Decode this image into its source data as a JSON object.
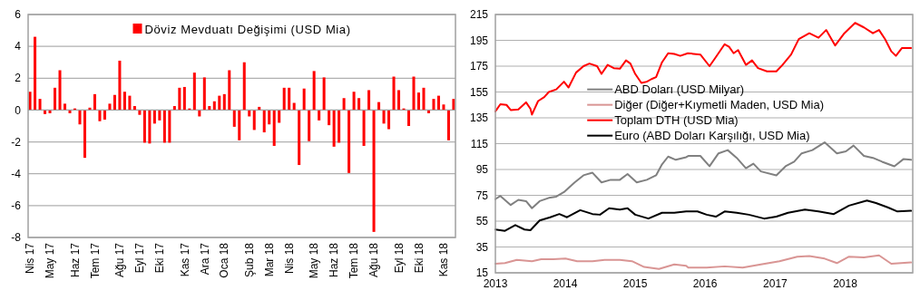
{
  "chart_data": [
    {
      "type": "bar",
      "categories": [
        "Nis 17",
        null,
        null,
        null,
        "May 17",
        null,
        null,
        null,
        null,
        "Haz 17",
        null,
        null,
        null,
        "Tem 17",
        null,
        null,
        null,
        null,
        "Ağu 17",
        null,
        null,
        null,
        "Eyl 17",
        null,
        null,
        null,
        "Eki 17",
        null,
        null,
        null,
        null,
        "Kas 17",
        null,
        null,
        null,
        "Ara 17",
        null,
        null,
        null,
        "Oca 18",
        null,
        null,
        null,
        null,
        "Şub 18",
        null,
        null,
        null,
        "Mar 18",
        null,
        null,
        null,
        "Nis 18",
        null,
        null,
        null,
        null,
        "May 18",
        null,
        null,
        null,
        "Haz 18",
        null,
        null,
        null,
        "Tem 18",
        null,
        null,
        null,
        "Ağu 18",
        null,
        null,
        null,
        null,
        "Eyl 18",
        null,
        null,
        null,
        "Eki 18",
        null,
        null,
        null,
        null,
        "Kas 18",
        null,
        null
      ],
      "series": [
        {
          "name": "Döviz Mevduatı Değişimi (USD Mia)",
          "color": "#ff0000",
          "values": [
            1.15,
            4.6,
            0.7,
            -0.25,
            -0.2,
            1.4,
            2.5,
            0.4,
            -0.2,
            0.1,
            -0.9,
            -3.0,
            0.15,
            1.0,
            -0.7,
            -0.6,
            0.4,
            0.95,
            3.1,
            1.15,
            0.9,
            0.25,
            -0.3,
            -2.05,
            -2.1,
            -0.85,
            -0.65,
            -2.05,
            -2.05,
            0.25,
            1.4,
            1.45,
            0.1,
            2.35,
            -0.4,
            2.05,
            0.25,
            0.55,
            0.9,
            1.0,
            2.5,
            -1.05,
            -1.9,
            3.0,
            -0.4,
            -1.25,
            0.2,
            -1.4,
            -0.9,
            -2.25,
            -0.8,
            1.4,
            1.4,
            0.45,
            -3.45,
            1.35,
            -1.95,
            2.45,
            -0.65,
            2.05,
            -0.95,
            -2.3,
            -2.05,
            0.75,
            -3.95,
            1.15,
            0.75,
            -2.25,
            1.25,
            -7.65,
            0.5,
            -0.85,
            -1.2,
            2.1,
            1.25,
            0.1,
            -1.0,
            2.1,
            1.1,
            1.4,
            -0.2,
            0.7,
            0.9,
            0.35,
            -1.9,
            0.7
          ]
        }
      ],
      "ylim": [
        -8,
        6
      ],
      "yticks": [
        -8,
        -6,
        -4,
        -2,
        0,
        2,
        4,
        6
      ],
      "grid": "y",
      "legend": "top"
    },
    {
      "type": "line",
      "xlim": [
        "2013-01-01",
        "2018-12-20"
      ],
      "xticks": [
        "2013",
        "2014",
        "2015",
        "2016",
        "2017",
        "2018"
      ],
      "ylim": [
        15,
        215
      ],
      "yticks": [
        15,
        35,
        55,
        75,
        95,
        115,
        135,
        155,
        175,
        195,
        215
      ],
      "grid": "y",
      "legend": "left",
      "series": [
        {
          "name": "ABD Doları (USD Milyar)",
          "color": "#808080",
          "x": [
            "2013-01-01",
            "2013-01-27",
            "2013-03-22",
            "2013-05-01",
            "2013-06-10",
            "2013-07-11",
            "2013-08-20",
            "2013-10-07",
            "2013-11-15",
            "2013-12-25",
            "2014-02-19",
            "2014-04-06",
            "2014-05-23",
            "2014-07-09",
            "2014-08-26",
            "2014-10-13",
            "2014-11-22",
            "2015-01-09",
            "2015-03-03",
            "2015-04-20",
            "2015-05-21",
            "2015-06-22",
            "2015-08-01",
            "2015-09-24",
            "2015-10-05",
            "2015-12-07",
            "2016-01-24",
            "2016-03-11",
            "2016-04-28",
            "2016-06-14",
            "2016-08-01",
            "2016-09-09",
            "2016-10-18",
            "2017-01-07",
            "2017-02-24",
            "2017-04-10",
            "2017-05-19",
            "2017-07-14",
            "2017-09-16",
            "2017-11-19",
            "2018-01-05",
            "2018-02-14",
            "2018-04-09",
            "2018-05-26",
            "2018-07-13",
            "2018-09-15",
            "2018-11-01",
            "2018-12-11"
          ],
          "values": [
            72,
            74.5,
            67.5,
            71.5,
            70.5,
            65,
            70.5,
            73,
            74,
            77.5,
            85,
            90.5,
            92.5,
            85,
            87,
            87,
            91.5,
            85,
            87,
            90.5,
            99,
            105,
            102.5,
            104.5,
            105.5,
            105.5,
            97.5,
            107.5,
            110,
            104,
            96,
            99.5,
            93.5,
            90.5,
            97.5,
            101,
            107.5,
            110,
            116,
            107.5,
            109,
            113.5,
            105.5,
            104,
            101,
            97.5,
            103,
            102.5
          ]
        },
        {
          "name": "Diğer (Diğer+Kıymetli Maden, USD Mia)",
          "color": "#d99594",
          "x": [
            "2013-01-01",
            "2013-02-20",
            "2013-04-23",
            "2013-07-11",
            "2013-08-28",
            "2013-10-30",
            "2014-01-02",
            "2014-03-04",
            "2014-05-23",
            "2014-07-25",
            "2014-10-13",
            "2014-12-15",
            "2015-02-17",
            "2015-05-05",
            "2015-07-24",
            "2015-09-24",
            "2015-10-05",
            "2016-01-09",
            "2016-04-12",
            "2016-07-15",
            "2016-10-18",
            "2017-01-23",
            "2017-04-26",
            "2017-06-28",
            "2017-09-16",
            "2017-11-19",
            "2018-01-21",
            "2018-04-09",
            "2018-06-27",
            "2018-08-30",
            "2018-12-11"
          ],
          "values": [
            22,
            22.5,
            25,
            24,
            25.5,
            25.5,
            26,
            24,
            24,
            25,
            25,
            24,
            19.5,
            18,
            21.5,
            20.5,
            19,
            19,
            20,
            19,
            21.5,
            24,
            27.5,
            28,
            26,
            22.5,
            27.5,
            27,
            28.5,
            22,
            23
          ]
        },
        {
          "name": "Toplam DTH (USD Mia)",
          "color": "#ff0000",
          "x": [
            "2013-01-01",
            "2013-01-27",
            "2013-02-28",
            "2013-03-22",
            "2013-05-01",
            "2013-06-10",
            "2013-07-03",
            "2013-07-11",
            "2013-08-12",
            "2013-09-13",
            "2013-10-07",
            "2013-11-15",
            "2013-12-25",
            "2014-01-18",
            "2014-02-26",
            "2014-04-06",
            "2014-05-07",
            "2014-06-16",
            "2014-07-09",
            "2014-08-10",
            "2014-09-11",
            "2014-10-13",
            "2014-11-14",
            "2014-12-07",
            "2015-01-01",
            "2015-02-02",
            "2015-03-03",
            "2015-03-27",
            "2015-04-20",
            "2015-05-21",
            "2015-06-22",
            "2015-07-24",
            "2015-08-24",
            "2015-10-03",
            "2015-12-07",
            "2016-01-24",
            "2016-02-26",
            "2016-04-12",
            "2016-05-05",
            "2016-05-29",
            "2016-06-21",
            "2016-08-01",
            "2016-09-02",
            "2016-10-03",
            "2016-11-19",
            "2017-01-07",
            "2017-02-08",
            "2017-03-25",
            "2017-05-04",
            "2017-06-28",
            "2017-08-15",
            "2017-09-24",
            "2017-11-10",
            "2017-12-28",
            "2018-02-22",
            "2018-04-09",
            "2018-05-26",
            "2018-06-27",
            "2018-07-28",
            "2018-08-30",
            "2018-09-23",
            "2018-10-24",
            "2018-12-11"
          ],
          "values": [
            140,
            145.5,
            145,
            141,
            141.5,
            147,
            142,
            137.5,
            148,
            151,
            155,
            157,
            163,
            158.5,
            170,
            175,
            177,
            175,
            169,
            176,
            173.5,
            173,
            179.5,
            177,
            169,
            162,
            163,
            165,
            166.5,
            178,
            185,
            184.5,
            183,
            185,
            184,
            175,
            182,
            192,
            190,
            185,
            187.5,
            176,
            179.5,
            173.5,
            171,
            171,
            176,
            184,
            196,
            200.5,
            197,
            203,
            191,
            200.5,
            208.5,
            205,
            200.5,
            203,
            196,
            186.5,
            183,
            189,
            189
          ]
        },
        {
          "name": "Euro (ABD Doları Karşılığı, USD Mia)",
          "color": "#000000",
          "x": [
            "2013-01-01",
            "2013-02-20",
            "2013-04-15",
            "2013-06-02",
            "2013-07-03",
            "2013-08-20",
            "2013-10-14",
            "2013-12-01",
            "2014-01-10",
            "2014-03-20",
            "2014-05-23",
            "2014-07-01",
            "2014-08-18",
            "2014-10-13",
            "2014-11-22",
            "2015-01-01",
            "2015-03-11",
            "2015-05-21",
            "2015-07-24",
            "2015-09-24",
            "2015-10-05",
            "2015-11-22",
            "2016-01-09",
            "2016-02-26",
            "2016-04-12",
            "2016-06-14",
            "2016-08-16",
            "2016-11-04",
            "2017-01-07",
            "2017-03-09",
            "2017-06-05",
            "2017-08-15",
            "2017-11-03",
            "2018-01-21",
            "2018-04-25",
            "2018-06-11",
            "2018-08-14",
            "2018-10-01",
            "2018-12-11"
          ],
          "values": [
            48.5,
            47.5,
            52,
            48.5,
            48,
            55.5,
            58,
            60.5,
            58,
            63.5,
            60.5,
            60,
            65,
            64,
            65,
            60,
            57,
            61.5,
            61.5,
            62.5,
            62.5,
            62.5,
            60,
            58.5,
            62.5,
            61.5,
            60,
            57,
            58.5,
            61.5,
            64,
            62.5,
            60.5,
            67,
            71,
            69,
            65.5,
            62.5,
            63
          ]
        }
      ]
    }
  ]
}
